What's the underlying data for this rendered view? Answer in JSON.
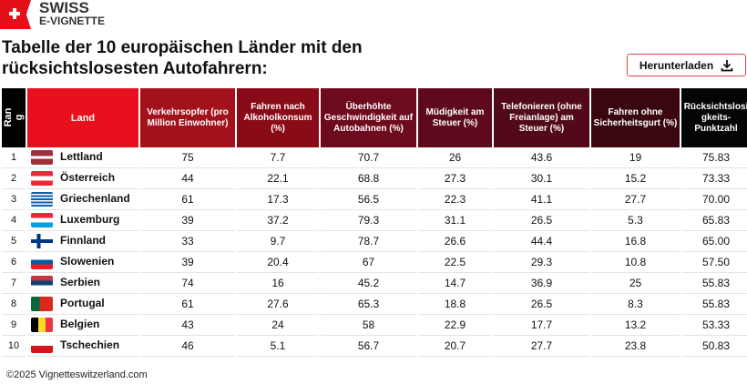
{
  "logo": {
    "line1": "SWISS",
    "line2": "E-VIGNETTE"
  },
  "title": "Tabelle der 10 europäischen Länder mit den rücksichtslosesten Autofahrern:",
  "download": {
    "label": "Herunterladen",
    "icon": "download-icon"
  },
  "columns": [
    {
      "label": "Rang",
      "color": "#000000"
    },
    {
      "label": "Land",
      "color": "#e8101c"
    },
    {
      "label": "Verkehrsopfer (pro Million Einwohner)",
      "color": "#a3121b"
    },
    {
      "label": "Fahren nach Alkoholkonsum (%)",
      "color": "#8a0b18"
    },
    {
      "label": "Überhöhte Geschwindigkeit auf Autobahnen (%)",
      "color": "#6e0a1e"
    },
    {
      "label": "Müdigkeit am Steuer (%)",
      "color": "#5e0a1c"
    },
    {
      "label": "Telefonieren (ohne Freianlage) am Steuer (%)",
      "color": "#520a18"
    },
    {
      "label": "Fahren ohne Sicherheitsgurt (%)",
      "color": "#3a0711"
    },
    {
      "label": "Rücksichtslosigkeits-Punktzahl",
      "color": "#050505"
    }
  ],
  "rows": [
    {
      "rank": "1",
      "country": "Lettland",
      "flag": "latvia",
      "v": [
        "75",
        "7.7",
        "70.7",
        "26",
        "43.6",
        "19",
        "75.83"
      ]
    },
    {
      "rank": "2",
      "country": "Österreich",
      "flag": "austria",
      "v": [
        "44",
        "22.1",
        "68.8",
        "27.3",
        "30.1",
        "15.2",
        "73.33"
      ]
    },
    {
      "rank": "3",
      "country": "Griechenland",
      "flag": "greece",
      "v": [
        "61",
        "17.3",
        "56.5",
        "22.3",
        "41.1",
        "27.7",
        "70.00"
      ]
    },
    {
      "rank": "4",
      "country": "Luxemburg",
      "flag": "luxembourg",
      "v": [
        "39",
        "37.2",
        "79.3",
        "31.1",
        "26.5",
        "5.3",
        "65.83"
      ]
    },
    {
      "rank": "5",
      "country": "Finnland",
      "flag": "finland",
      "v": [
        "33",
        "9.7",
        "78.7",
        "26.6",
        "44.4",
        "16.8",
        "65.00"
      ]
    },
    {
      "rank": "6",
      "country": "Slowenien",
      "flag": "slovenia",
      "v": [
        "39",
        "20.4",
        "67",
        "22.5",
        "29.3",
        "10.8",
        "57.50"
      ]
    },
    {
      "rank": "7",
      "country": "Serbien",
      "flag": "serbia",
      "v": [
        "74",
        "16",
        "45.2",
        "14.7",
        "36.9",
        "25",
        "55.83"
      ]
    },
    {
      "rank": "8",
      "country": "Portugal",
      "flag": "portugal",
      "v": [
        "61",
        "27.6",
        "65.3",
        "18.8",
        "26.5",
        "8.3",
        "55.83"
      ]
    },
    {
      "rank": "9",
      "country": "Belgien",
      "flag": "belgium",
      "v": [
        "43",
        "24",
        "58",
        "22.9",
        "17.7",
        "13.2",
        "53.33"
      ]
    },
    {
      "rank": "10",
      "country": "Tschechien",
      "flag": "czechia",
      "v": [
        "46",
        "5.1",
        "56.7",
        "20.7",
        "27.7",
        "23.8",
        "50.83"
      ]
    }
  ],
  "footer": "©2025 Vignetteswitzerland.com"
}
